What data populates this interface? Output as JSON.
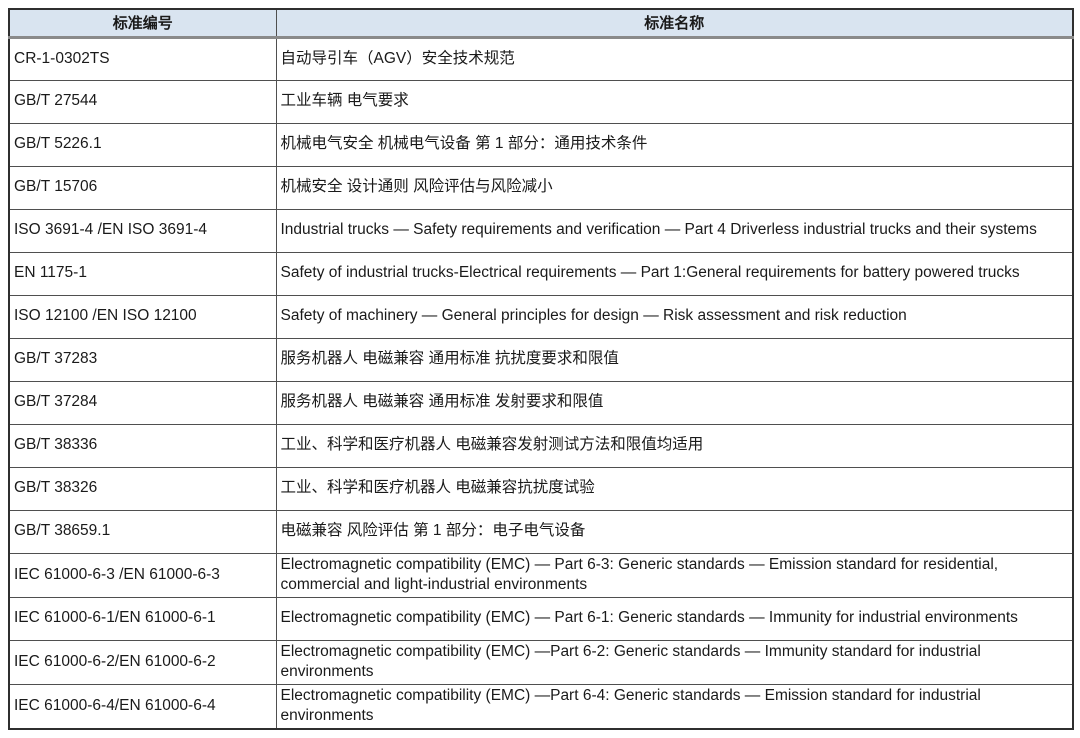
{
  "table": {
    "headers": {
      "code": "标准编号",
      "name": "标准名称"
    },
    "rows": [
      {
        "code": "CR-1-0302TS",
        "name": "自动导引车（AGV）安全技术规范"
      },
      {
        "code": "GB/T 27544",
        "name": "工业车辆 电气要求"
      },
      {
        "code": "GB/T 5226.1",
        "name": "机械电气安全 机械电气设备 第 1 部分：通用技术条件"
      },
      {
        "code": "GB/T 15706",
        "name": "机械安全 设计通则 风险评估与风险减小"
      },
      {
        "code": "ISO 3691-4 /EN ISO 3691-4",
        "name": "Industrial trucks — Safety requirements and verification — Part 4 Driverless industrial trucks and their systems"
      },
      {
        "code": "EN 1175-1",
        "name": "Safety of industrial trucks-Electrical requirements — Part 1:General requirements for battery powered trucks"
      },
      {
        "code": "ISO 12100 /EN ISO 12100",
        "name": "Safety of machinery — General principles for design — Risk assessment and risk reduction"
      },
      {
        "code": "GB/T 37283",
        "name": "服务机器人 电磁兼容 通用标准 抗扰度要求和限值"
      },
      {
        "code": "GB/T 37284",
        "name": "服务机器人 电磁兼容 通用标准 发射要求和限值"
      },
      {
        "code": "GB/T 38336",
        "name": "工业、科学和医疗机器人 电磁兼容发射测试方法和限值均适用"
      },
      {
        "code": "GB/T 38326",
        "name": "工业、科学和医疗机器人 电磁兼容抗扰度试验"
      },
      {
        "code": "GB/T 38659.1",
        "name": "电磁兼容 风险评估 第 1 部分：电子电气设备"
      },
      {
        "code": "IEC 61000-6-3 /EN 61000-6-3",
        "name": "Electromagnetic compatibility (EMC) — Part 6-3: Generic standards — Emission standard for residential, commercial and light-industrial environments"
      },
      {
        "code": "IEC 61000-6-1/EN 61000-6-1",
        "name": "Electromagnetic compatibility (EMC) — Part 6-1: Generic standards — Immunity for industrial environments"
      },
      {
        "code": "IEC 61000-6-2/EN 61000-6-2",
        "name": "Electromagnetic compatibility (EMC) —Part 6-2: Generic standards — Immunity standard for industrial environments"
      },
      {
        "code": "IEC 61000-6-4/EN 61000-6-4",
        "name": "Electromagnetic compatibility (EMC) —Part 6-4: Generic standards — Emission standard for industrial environments"
      }
    ]
  },
  "colors": {
    "background": "#ffffff",
    "text": "#1a1a1a",
    "header_bg": "#d9e4f0",
    "header_rule": "#8a8a8a",
    "outer_border": "#2f2f2f",
    "cell_border": "#4f4f4f"
  }
}
